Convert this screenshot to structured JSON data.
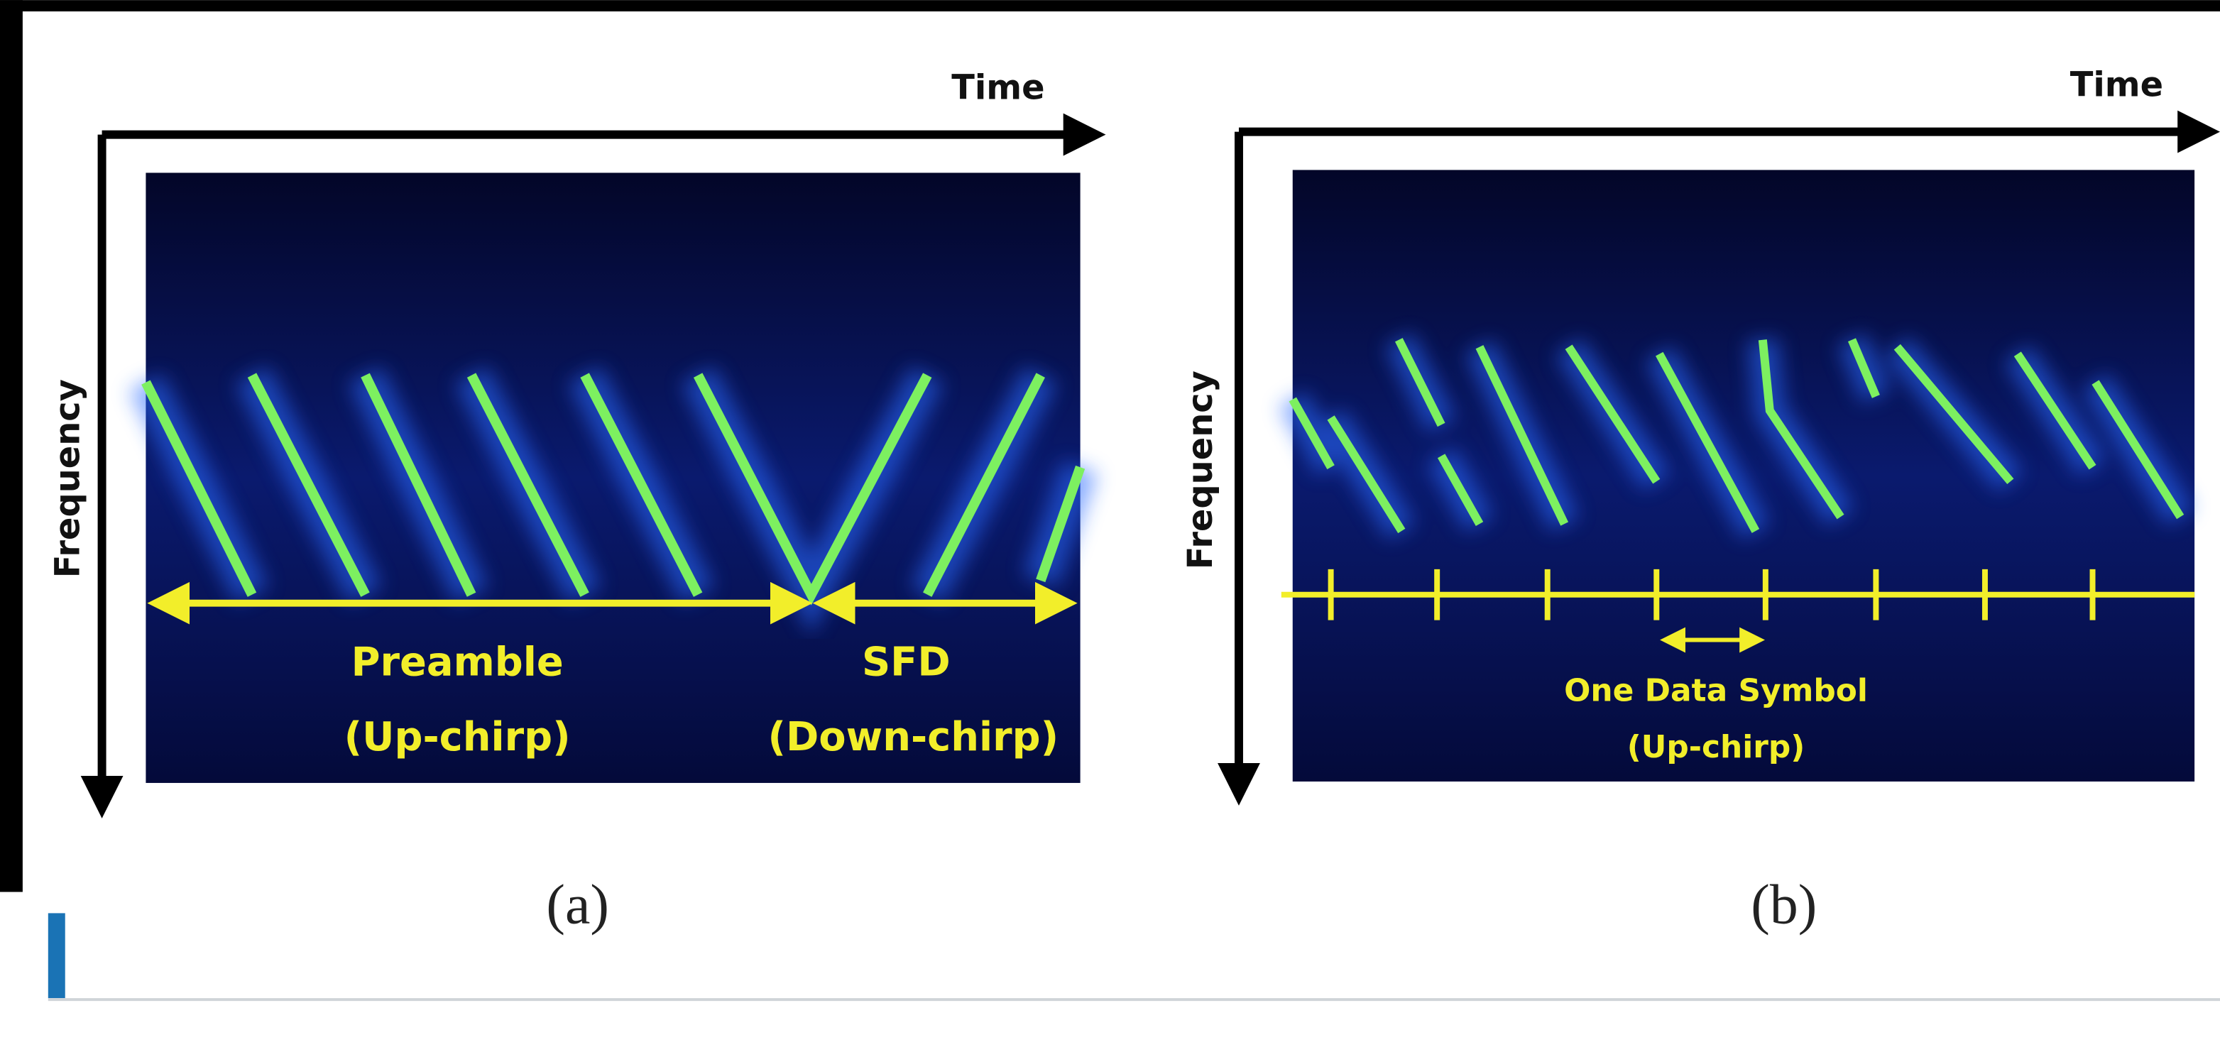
{
  "figure": {
    "panels": [
      {
        "time_label": "Time",
        "frequency_label": "Frequency",
        "annotations": [
          {
            "lines": [
              "Preamble",
              "(Up-chirp)"
            ]
          },
          {
            "lines": [
              "SFD",
              "(Down-chirp)"
            ]
          }
        ],
        "caption": "(a)"
      },
      {
        "time_label": "Time",
        "frequency_label": "Frequency",
        "annotations": [
          {
            "lines": [
              "One Data Symbol",
              "(Up-chirp)"
            ]
          }
        ],
        "caption": "(b)"
      }
    ]
  }
}
